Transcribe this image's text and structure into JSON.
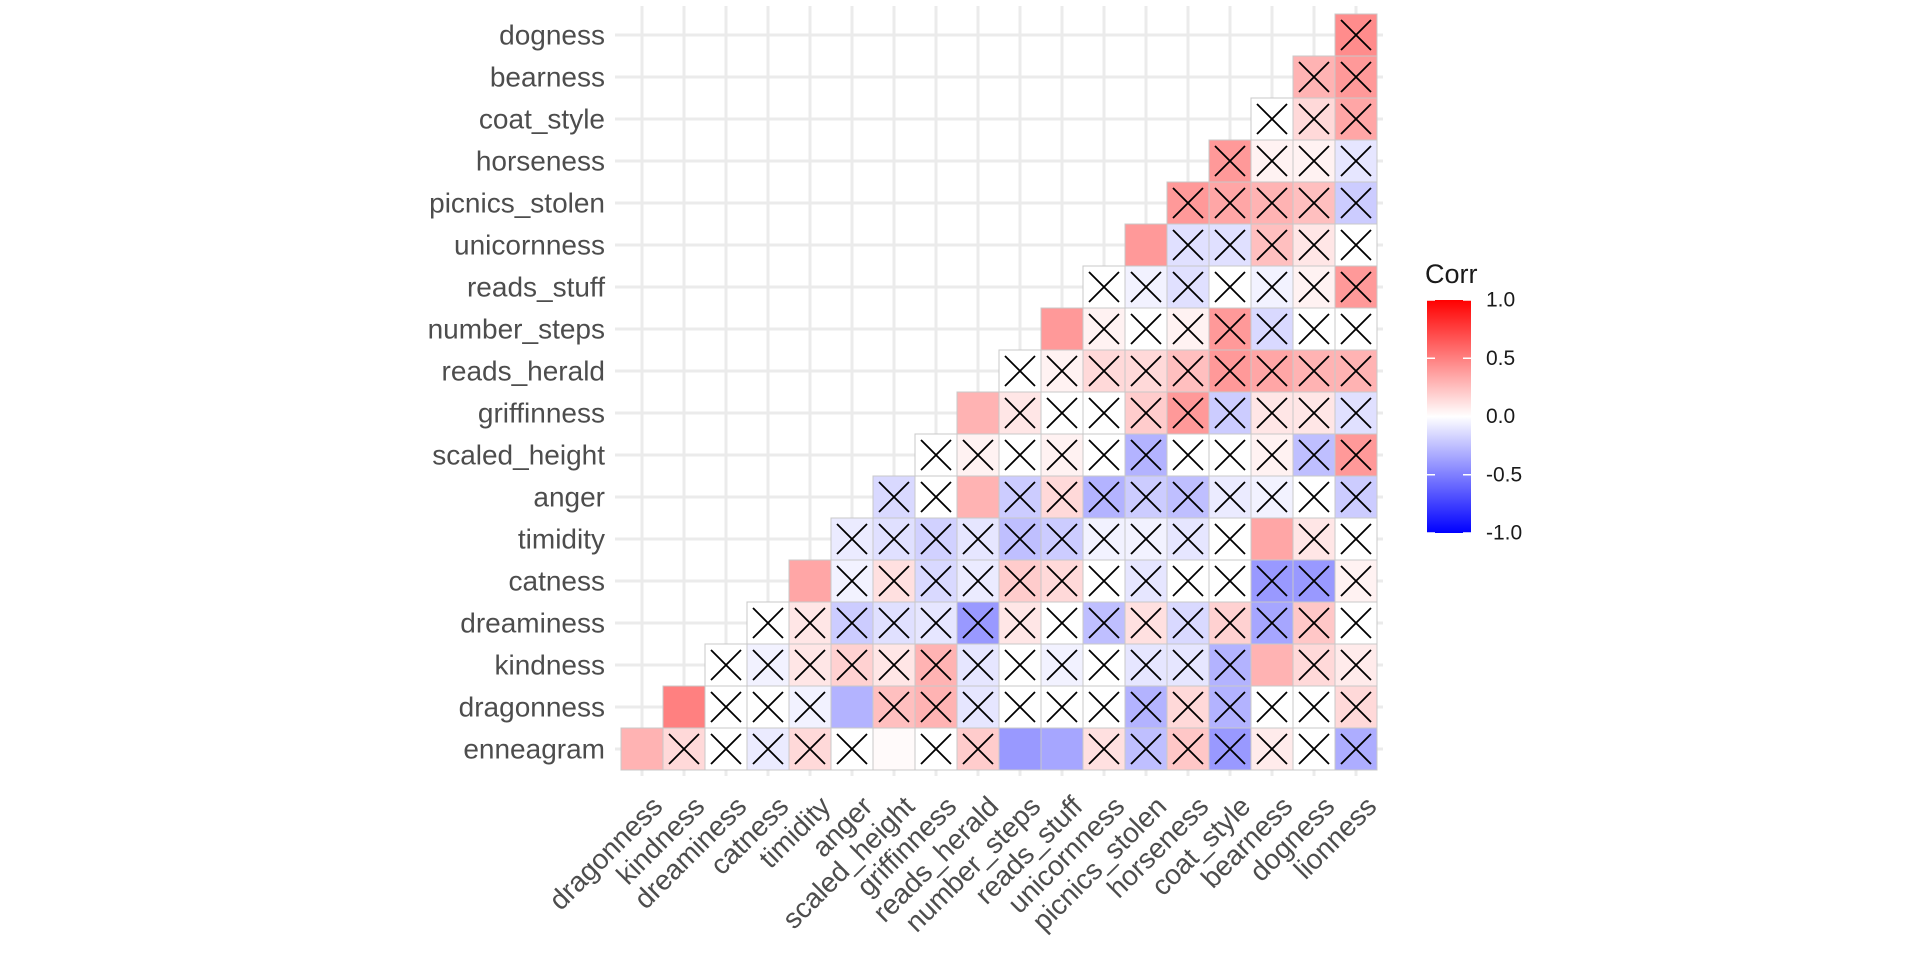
{
  "chart_data": {
    "type": "heatmap",
    "subtype": "lower-triangle correlation matrix",
    "x_labels": [
      "dragonness",
      "kindness",
      "dreaminess",
      "catness",
      "timidity",
      "anger",
      "scaled_height",
      "griffinness",
      "reads_herald",
      "number_steps",
      "reads_stuff",
      "unicornness",
      "picnics_stolen",
      "horseness",
      "coat_style",
      "bearness",
      "dogness",
      "lionness"
    ],
    "y_labels": [
      "enneagram",
      "dragonness",
      "kindness",
      "dreaminess",
      "catness",
      "timidity",
      "anger",
      "scaled_height",
      "griffinness",
      "reads_herald",
      "number_steps",
      "reads_stuff",
      "unicornness",
      "picnics_stolen",
      "horseness",
      "coat_style",
      "bearness",
      "dogness"
    ],
    "rows": [
      {
        "label": "enneagram",
        "values": [
          0.3,
          0.15,
          0.0,
          -0.08,
          0.15,
          0.0,
          0.02,
          0.0,
          0.2,
          -0.4,
          -0.35,
          0.12,
          -0.25,
          0.22,
          -0.4,
          0.08,
          0.0,
          -0.32
        ],
        "insignificant": [
          false,
          true,
          true,
          true,
          true,
          true,
          false,
          true,
          true,
          false,
          false,
          true,
          true,
          true,
          true,
          true,
          true,
          true
        ]
      },
      {
        "label": "dragonness",
        "values": [
          0.5,
          0.0,
          0.0,
          -0.05,
          -0.3,
          0.25,
          0.3,
          -0.1,
          0.0,
          0.0,
          0.0,
          -0.3,
          0.15,
          -0.3,
          0.0,
          0.0,
          0.15
        ],
        "insignificant": [
          false,
          true,
          true,
          true,
          false,
          true,
          true,
          true,
          true,
          true,
          true,
          true,
          true,
          true,
          true,
          true,
          true
        ]
      },
      {
        "label": "kindness",
        "values": [
          0.0,
          -0.05,
          0.1,
          0.18,
          0.1,
          0.3,
          -0.1,
          0.0,
          -0.05,
          0.0,
          -0.1,
          -0.1,
          -0.3,
          0.3,
          0.15,
          0.08
        ],
        "insignificant": [
          true,
          true,
          true,
          true,
          true,
          true,
          true,
          true,
          true,
          true,
          true,
          true,
          true,
          false,
          true,
          true
        ]
      },
      {
        "label": "dreaminess",
        "values": [
          0.0,
          0.1,
          -0.2,
          -0.12,
          -0.1,
          -0.4,
          0.1,
          0.0,
          -0.25,
          0.12,
          -0.15,
          0.18,
          -0.35,
          0.22,
          0.0
        ],
        "insignificant": [
          true,
          true,
          true,
          true,
          true,
          true,
          true,
          true,
          true,
          true,
          true,
          true,
          true,
          true,
          true
        ]
      },
      {
        "label": "catness",
        "values": [
          0.35,
          -0.05,
          0.12,
          -0.15,
          -0.08,
          0.2,
          0.15,
          0.0,
          -0.1,
          0.0,
          0.0,
          -0.4,
          -0.4,
          0.05
        ],
        "insignificant": [
          false,
          true,
          true,
          true,
          true,
          true,
          true,
          true,
          true,
          true,
          true,
          true,
          true,
          true
        ]
      },
      {
        "label": "timidity",
        "values": [
          -0.08,
          -0.12,
          -0.18,
          -0.1,
          -0.25,
          -0.2,
          -0.05,
          -0.05,
          -0.1,
          0.0,
          0.35,
          0.1,
          0.0
        ],
        "insignificant": [
          true,
          true,
          true,
          true,
          true,
          true,
          true,
          true,
          true,
          true,
          false,
          true,
          true
        ]
      },
      {
        "label": "anger",
        "values": [
          -0.15,
          0.0,
          0.3,
          -0.2,
          0.15,
          -0.3,
          -0.2,
          -0.25,
          -0.08,
          -0.05,
          0.0,
          -0.2
        ],
        "insignificant": [
          true,
          true,
          false,
          true,
          true,
          true,
          true,
          true,
          true,
          true,
          true,
          true
        ]
      },
      {
        "label": "scaled_height",
        "values": [
          0.0,
          0.05,
          0.0,
          0.05,
          0.0,
          -0.3,
          0.0,
          0.0,
          0.05,
          -0.25,
          0.4
        ],
        "insignificant": [
          true,
          true,
          true,
          true,
          true,
          true,
          true,
          true,
          true,
          true,
          true
        ]
      },
      {
        "label": "griffinness",
        "values": [
          0.3,
          0.1,
          0.0,
          0.0,
          0.2,
          0.4,
          -0.2,
          0.1,
          0.1,
          -0.12
        ],
        "insignificant": [
          false,
          true,
          true,
          true,
          true,
          true,
          true,
          true,
          true,
          true
        ]
      },
      {
        "label": "reads_herald",
        "values": [
          0.0,
          0.05,
          0.15,
          0.15,
          0.25,
          0.4,
          0.35,
          0.3,
          0.3
        ],
        "insignificant": [
          true,
          true,
          true,
          true,
          true,
          true,
          true,
          true,
          true
        ]
      },
      {
        "label": "number_steps",
        "values": [
          0.4,
          0.05,
          0.0,
          0.05,
          0.4,
          -0.15,
          0.0,
          0.0
        ],
        "insignificant": [
          false,
          true,
          true,
          true,
          true,
          true,
          true,
          true
        ]
      },
      {
        "label": "reads_stuff",
        "values": [
          0.0,
          -0.05,
          -0.12,
          0.0,
          -0.05,
          0.05,
          0.4
        ],
        "insignificant": [
          true,
          true,
          true,
          true,
          true,
          true,
          true
        ]
      },
      {
        "label": "unicornness",
        "values": [
          0.4,
          -0.12,
          -0.12,
          0.25,
          0.1,
          0.0
        ],
        "insignificant": [
          false,
          true,
          true,
          true,
          true,
          true
        ]
      },
      {
        "label": "picnics_stolen",
        "values": [
          0.4,
          0.35,
          0.3,
          0.25,
          -0.2
        ],
        "insignificant": [
          true,
          true,
          true,
          true,
          true
        ]
      },
      {
        "label": "horseness",
        "values": [
          0.4,
          0.05,
          0.05,
          -0.1
        ],
        "insignificant": [
          true,
          true,
          true,
          true
        ]
      },
      {
        "label": "coat_style",
        "values": [
          0.0,
          0.15,
          0.35
        ],
        "insignificant": [
          true,
          true,
          true
        ]
      },
      {
        "label": "bearness",
        "values": [
          0.3,
          0.4
        ],
        "insignificant": [
          true,
          true
        ]
      },
      {
        "label": "dogness",
        "values": [
          0.45
        ],
        "insignificant": [
          true
        ]
      }
    ],
    "colors": {
      "low": "#0000ff",
      "mid": "#ffffff",
      "high": "#ff0000"
    },
    "grid": true,
    "legend": {
      "title": "Corr",
      "placement": "right",
      "min": -1.0,
      "max": 1.0,
      "tick_values": [
        1.0,
        0.5,
        0.0,
        -0.5,
        -1.0
      ],
      "tick_labels": [
        "1.0",
        "0.5",
        "0.0",
        "-0.5",
        "-1.0"
      ]
    }
  }
}
